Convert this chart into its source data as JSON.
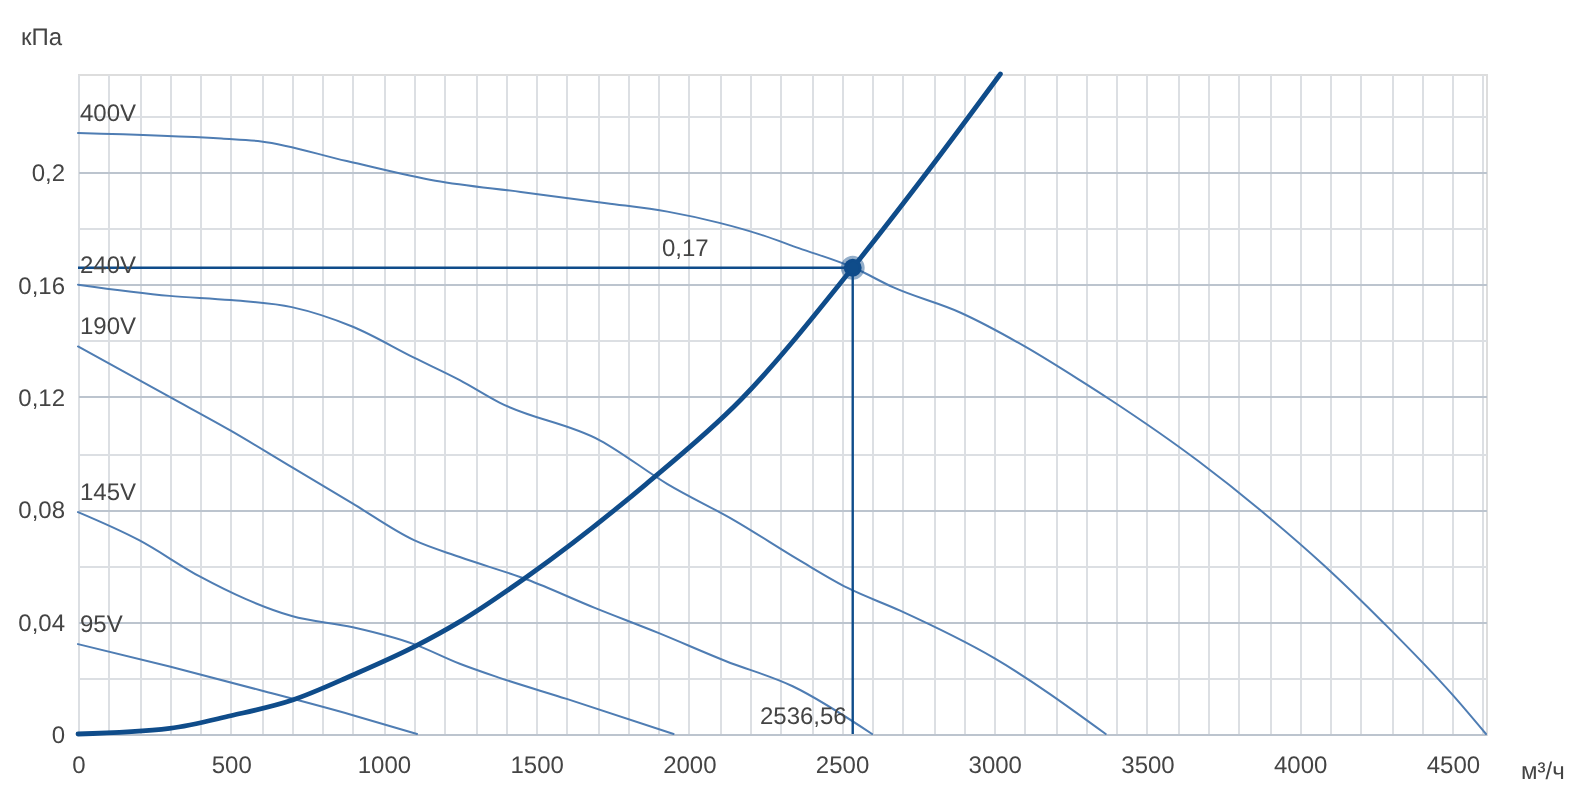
{
  "chart_data": {
    "type": "line",
    "xlabel": "м³/ч",
    "ylabel": "кПа",
    "xlim": [
      0,
      4610
    ],
    "ylim": [
      0,
      0.235
    ],
    "xticks": [
      0,
      {
        "value": 100,
        "label": null
      },
      {
        "value": 200,
        "label": null
      },
      {
        "value": 300,
        "label": null
      },
      {
        "value": 400,
        "label": null
      },
      500,
      {
        "value": 600,
        "label": null
      },
      {
        "value": 700,
        "label": null
      },
      {
        "value": 800,
        "label": null
      },
      {
        "value": 900,
        "label": null
      },
      1000,
      {
        "value": 1100,
        "label": null
      },
      {
        "value": 1200,
        "label": null
      },
      {
        "value": 1300,
        "label": null
      },
      {
        "value": 1400,
        "label": null
      },
      1500,
      {
        "value": 1600,
        "label": null
      },
      {
        "value": 1700,
        "label": null
      },
      {
        "value": 1800,
        "label": null
      },
      {
        "value": 1900,
        "label": null
      },
      2000,
      {
        "value": 2100,
        "label": null
      },
      {
        "value": 2200,
        "label": null
      },
      {
        "value": 2300,
        "label": null
      },
      {
        "value": 2400,
        "label": null
      },
      2500,
      {
        "value": 2600,
        "label": null
      },
      {
        "value": 2700,
        "label": null
      },
      {
        "value": 2800,
        "label": null
      },
      {
        "value": 2900,
        "label": null
      },
      3000,
      {
        "value": 3100,
        "label": null
      },
      {
        "value": 3200,
        "label": null
      },
      {
        "value": 3300,
        "label": null
      },
      {
        "value": 3400,
        "label": null
      },
      3500,
      {
        "value": 3600,
        "label": null
      },
      {
        "value": 3700,
        "label": null
      },
      {
        "value": 3800,
        "label": null
      },
      {
        "value": 3900,
        "label": null
      },
      4000,
      {
        "value": 4100,
        "label": null
      },
      {
        "value": 4200,
        "label": null
      },
      {
        "value": 4300,
        "label": null
      },
      {
        "value": 4400,
        "label": null
      },
      4500,
      {
        "value": 4600,
        "label": null
      }
    ],
    "yticks": [
      0,
      {
        "value": 0.02,
        "label": null
      },
      {
        "value": 0.04,
        "label": "0,04"
      },
      {
        "value": 0.06,
        "label": null
      },
      {
        "value": 0.08,
        "label": "0,08"
      },
      {
        "value": 0.1,
        "label": null
      },
      {
        "value": 0.12,
        "label": "0,12"
      },
      {
        "value": 0.14,
        "label": null
      },
      {
        "value": 0.16,
        "label": "0,16"
      },
      {
        "value": 0.18,
        "label": null
      },
      {
        "value": 0.2,
        "label": "0,2"
      },
      {
        "value": 0.22,
        "label": null
      }
    ],
    "grid": true,
    "line_style": "solid",
    "series": [
      {
        "name": "400V",
        "color": "#4f7db3",
        "x": [
          0,
          470,
          600,
          880,
          1170,
          1450,
          1730,
          1930,
          2100,
          2230,
          2360,
          2540,
          2670,
          2890,
          3100,
          3280,
          3380,
          3670,
          3890,
          4080,
          4280,
          4500,
          4610
        ],
        "values": [
          0.214,
          0.212,
          0.211,
          0.204,
          0.197,
          0.193,
          0.189,
          0.186,
          0.182,
          0.178,
          0.173,
          0.166,
          0.159,
          0.15,
          0.138,
          0.126,
          0.119,
          0.097,
          0.078,
          0.06,
          0.039,
          0.014,
          0
        ]
      },
      {
        "name": "240V",
        "color": "#4f7db3",
        "x": [
          0,
          300,
          500,
          700,
          900,
          1100,
          1250,
          1380,
          1710,
          1930,
          2150,
          2360,
          2520,
          2690,
          3000,
          3365
        ],
        "values": [
          0.16,
          0.156,
          0.1545,
          0.152,
          0.145,
          0.134,
          0.126,
          0.118,
          0.1045,
          0.089,
          0.076,
          0.062,
          0.052,
          0.044,
          0.027,
          0
        ]
      },
      {
        "name": "190V",
        "color": "#4f7db3",
        "x": [
          0,
          300,
          500,
          700,
          900,
          1100,
          1250,
          1470,
          1690,
          1900,
          2120,
          2340,
          2600
        ],
        "values": [
          0.138,
          0.12,
          0.108,
          0.095,
          0.082,
          0.069,
          0.063,
          0.055,
          0.045,
          0.036,
          0.026,
          0.017,
          0
        ]
      },
      {
        "name": "145V",
        "color": "#4f7db3",
        "x": [
          0,
          200,
          400,
          550,
          700,
          900,
          1100,
          1250,
          1380,
          1600,
          1950
        ],
        "values": [
          0.079,
          0.069,
          0.056,
          0.048,
          0.042,
          0.038,
          0.032,
          0.025,
          0.02,
          0.0125,
          0
        ]
      },
      {
        "name": "95V",
        "color": "#4f7db3",
        "x": [
          0,
          300,
          600,
          900,
          1110
        ],
        "values": [
          0.032,
          0.024,
          0.0155,
          0.0067,
          0
        ]
      },
      {
        "color": "#0f4c8a",
        "x": [
          0,
          300,
          500,
          700,
          900,
          1100,
          1250,
          1470,
          1860,
          2170,
          2536.56,
          2780,
          3020
        ],
        "values": [
          0,
          0.002,
          0.0065,
          0.012,
          0.021,
          0.031,
          0.04,
          0.056,
          0.089,
          0.119,
          0.166,
          0.2,
          0.235
        ]
      },
      {
        "type": "scatter",
        "marker": "circle",
        "color": "#0f4c8a",
        "x": [
          2536.56
        ],
        "values": [
          0.166
        ]
      }
    ],
    "ref_lines": [
      {
        "axis": "y",
        "value": 0.166,
        "label": "0,17",
        "color": "#0f4c8a"
      },
      {
        "axis": "x",
        "value": 2536.56,
        "label": "2536,56",
        "color": "#0f4c8a"
      }
    ]
  }
}
